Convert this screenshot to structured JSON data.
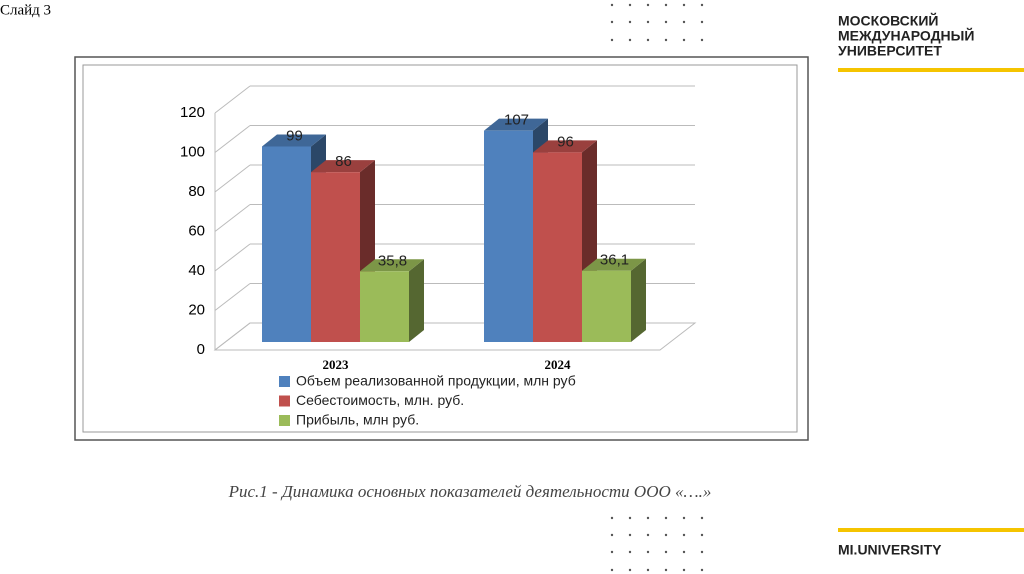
{
  "slide": {
    "label": "Слайд 3",
    "logo": [
      "МОСКОВСКИЙ",
      "МЕЖДУНАРОДНЫЙ",
      "УНИВЕРСИТЕТ"
    ],
    "footer_logo": "MI.UNIVERSITY",
    "caption": "Рис.1 - Динамика основных показателей деятельности ООО «….»"
  },
  "chart_data": {
    "type": "bar3d",
    "categories": [
      "2023",
      "2024"
    ],
    "series": [
      {
        "name": "Объем реализованной продукции, млн руб",
        "color": "#4f81bd",
        "values": [
          99,
          107
        ]
      },
      {
        "name": "Себестоимость, млн. руб.",
        "color": "#c0504d",
        "values": [
          86,
          96
        ]
      },
      {
        "name": "Прибыль, млн руб.",
        "color": "#9bbb59",
        "values": [
          35.8,
          36.1
        ],
        "value_labels": [
          "35,8",
          "36,1"
        ]
      }
    ],
    "ylim": [
      0,
      120
    ],
    "yticks": [
      0,
      20,
      40,
      60,
      80,
      100,
      120
    ],
    "grid": true,
    "legend": "bottom"
  }
}
